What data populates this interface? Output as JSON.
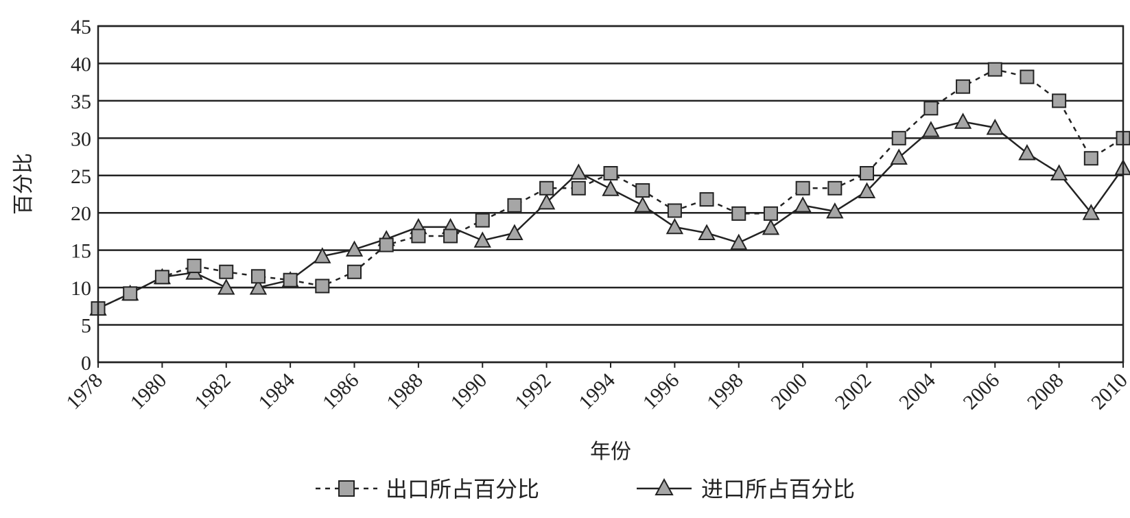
{
  "chart_data": {
    "type": "line",
    "title": "",
    "xlabel": "年份",
    "ylabel": "百分比",
    "xlim": [
      1978,
      2010
    ],
    "ylim": [
      0,
      45
    ],
    "yticks": [
      0,
      5,
      10,
      15,
      20,
      25,
      30,
      35,
      40,
      45
    ],
    "xtick_labels": [
      "1978",
      "1980",
      "1982",
      "1984",
      "1986",
      "1988",
      "1990",
      "1992",
      "1994",
      "1996",
      "1998",
      "2000",
      "2002",
      "2004",
      "2006",
      "2008",
      "2010"
    ],
    "grid": "horizontal",
    "legend_position": "bottom",
    "x": [
      1978,
      1979,
      1980,
      1981,
      1982,
      1983,
      1984,
      1985,
      1986,
      1987,
      1988,
      1989,
      1990,
      1991,
      1992,
      1993,
      1994,
      1995,
      1996,
      1997,
      1998,
      1999,
      2000,
      2001,
      2002,
      2003,
      2004,
      2005,
      2006,
      2007,
      2008,
      2009,
      2010
    ],
    "series": [
      {
        "name": "出口所占百分比",
        "marker": "square",
        "line": "dashed",
        "values": [
          7.2,
          9.2,
          11.4,
          12.9,
          12.1,
          11.5,
          11.0,
          10.2,
          12.1,
          15.7,
          16.9,
          16.9,
          19.0,
          21.0,
          23.3,
          23.3,
          25.3,
          23.0,
          20.3,
          21.8,
          19.9,
          19.9,
          23.3,
          23.3,
          25.3,
          30.0,
          34.0,
          36.9,
          39.2,
          38.2,
          35.0,
          27.3,
          30.0
        ]
      },
      {
        "name": "进口所占百分比",
        "marker": "triangle",
        "line": "solid",
        "values": [
          7.2,
          9.2,
          11.4,
          12.0,
          10.0,
          10.0,
          11.0,
          14.2,
          15.1,
          16.5,
          18.1,
          18.1,
          16.3,
          17.3,
          21.4,
          25.4,
          23.2,
          21.0,
          18.1,
          17.3,
          16.0,
          18.0,
          21.0,
          20.2,
          22.9,
          27.4,
          31.1,
          32.2,
          31.4,
          28.0,
          25.3,
          20.0,
          26.0
        ]
      }
    ]
  }
}
